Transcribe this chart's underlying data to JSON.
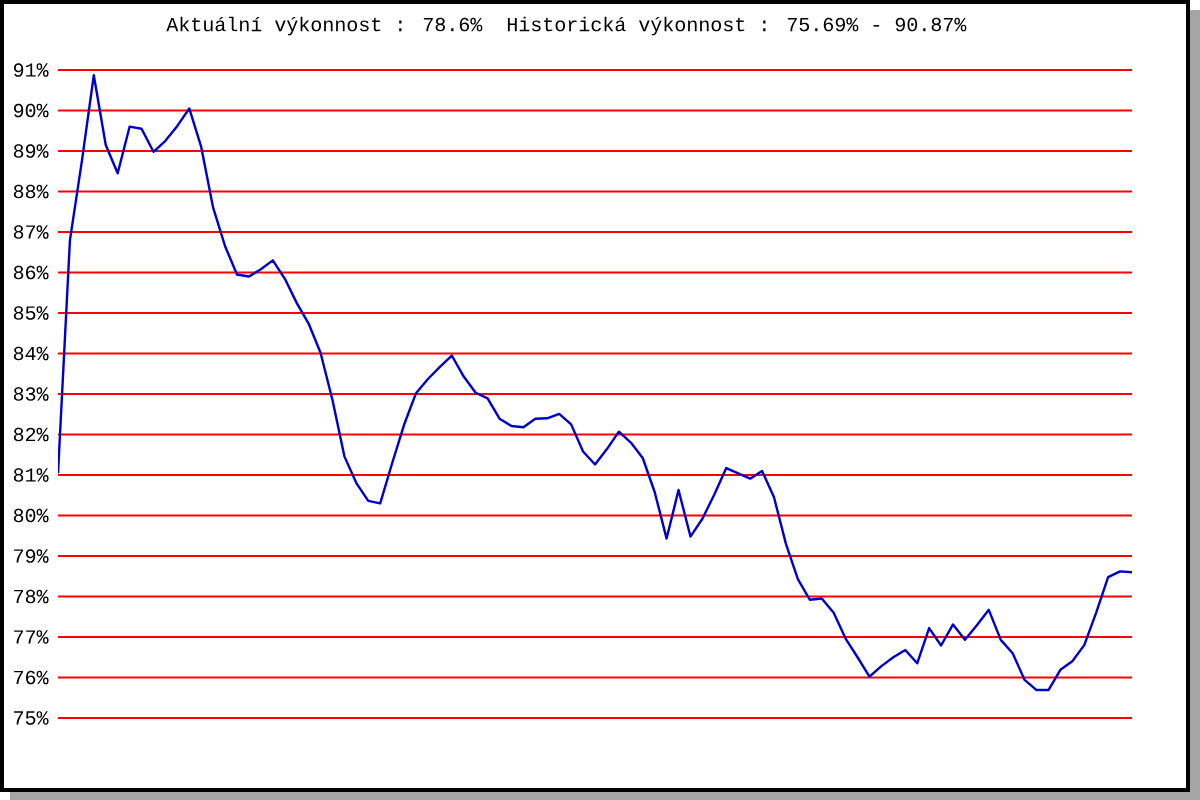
{
  "chart_data": {
    "type": "line",
    "title": "Aktuální výkonnost : 78.6%  Historická výkonnost : 75.69% - 90.87%",
    "categories": [
      null,
      null,
      null,
      null,
      null,
      null,
      null,
      null,
      null,
      null,
      null,
      null,
      null,
      null,
      null,
      null,
      null,
      null,
      null,
      null,
      null,
      null,
      null,
      null,
      null,
      null,
      null,
      null,
      null,
      null,
      null,
      null,
      null,
      null,
      null,
      null,
      null,
      null,
      null,
      null,
      null,
      null,
      null,
      null,
      null,
      null,
      null,
      null,
      null,
      null,
      null,
      null,
      null,
      null,
      null,
      null,
      null,
      null,
      null,
      null,
      null,
      null,
      null,
      null,
      null,
      null,
      null,
      null,
      null,
      null,
      null,
      null,
      null,
      null,
      null,
      null,
      null,
      null,
      null,
      null,
      null,
      null,
      null,
      null,
      null,
      null,
      null,
      null,
      null,
      null,
      null
    ],
    "color": "#0000cc",
    "values": [
      81.04,
      86.8,
      88.75,
      90.87,
      89.15,
      88.45,
      89.6,
      89.55,
      88.98,
      89.25,
      89.62,
      90.05,
      89.1,
      87.6,
      86.65,
      85.95,
      85.9,
      86.08,
      86.3,
      85.85,
      85.25,
      84.74,
      84.02,
      82.85,
      81.46,
      80.8,
      80.36,
      80.3,
      81.29,
      82.24,
      83.02,
      83.37,
      83.67,
      83.95,
      83.43,
      83.03,
      82.89,
      82.39,
      82.21,
      82.18,
      82.39,
      82.4,
      82.51,
      82.25,
      81.58,
      81.26,
      81.64,
      82.07,
      81.8,
      81.42,
      80.58,
      79.43,
      80.63,
      79.48,
      79.92,
      80.52,
      81.17,
      81.04,
      80.91,
      81.1,
      80.45,
      79.3,
      78.43,
      77.92,
      77.95,
      77.6,
      76.96,
      76.5,
      76.02,
      76.28,
      76.5,
      76.68,
      76.35,
      77.22,
      76.79,
      77.31,
      76.93,
      77.29,
      77.67,
      76.93,
      76.6,
      75.94,
      75.69,
      75.69,
      76.19,
      76.4,
      76.8,
      77.6,
      78.48,
      78.62,
      78.6
    ],
    "ylim": [
      75,
      91
    ],
    "yticks": [
      {
        "value": 75,
        "label": "75%"
      },
      {
        "value": 76,
        "label": "76%"
      },
      {
        "value": 77,
        "label": "77%"
      },
      {
        "value": 78,
        "label": "78%"
      },
      {
        "value": 79,
        "label": "79%"
      },
      {
        "value": 80,
        "label": "80%"
      },
      {
        "value": 81,
        "label": "81%"
      },
      {
        "value": 82,
        "label": "82%"
      },
      {
        "value": 83,
        "label": "83%"
      },
      {
        "value": 84,
        "label": "84%"
      },
      {
        "value": 85,
        "label": "85%"
      },
      {
        "value": 86,
        "label": "86%"
      },
      {
        "value": 87,
        "label": "87%"
      },
      {
        "value": 88,
        "label": "88%"
      },
      {
        "value": 89,
        "label": "89%"
      },
      {
        "value": 90,
        "label": "90%"
      },
      {
        "value": 91,
        "label": "91%"
      }
    ],
    "grid": "y",
    "tick_labels": "y"
  }
}
